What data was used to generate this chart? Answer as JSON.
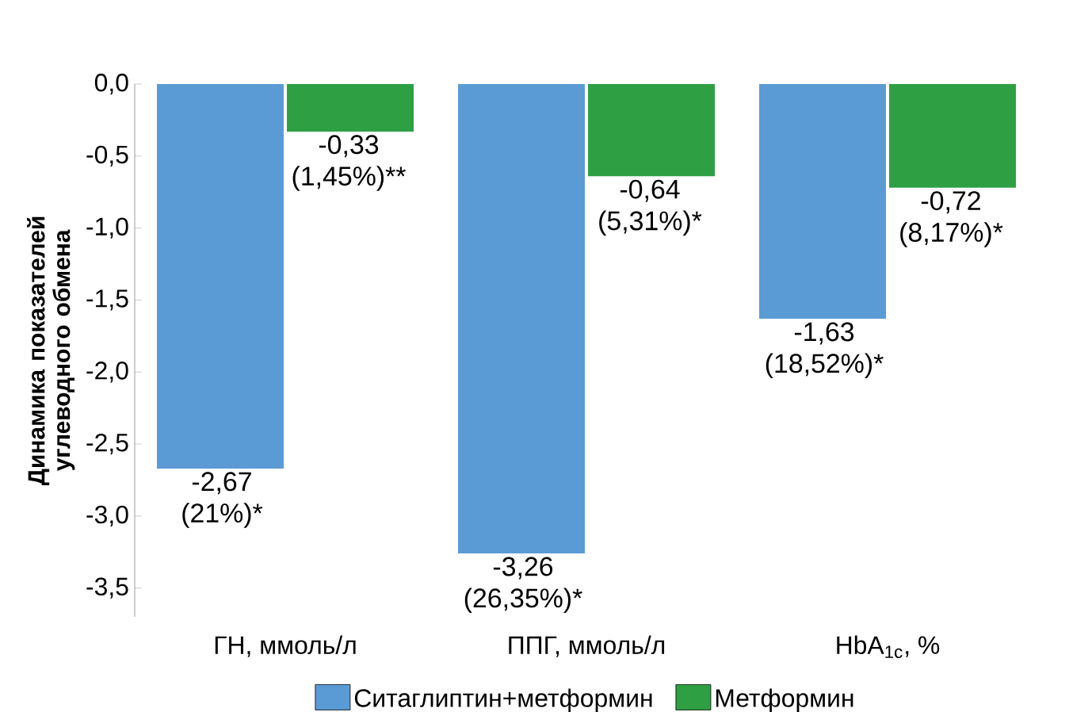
{
  "chart_data": {
    "type": "bar",
    "ylabel": "Динамика показателей углеводного обмена",
    "categories": [
      "ГН, ммоль/л",
      "ППГ, ммоль/л",
      "HbA$_{1c}$, %"
    ],
    "series": [
      {
        "name": "Ситаглиптин+метформин",
        "color": "#5b9bd5",
        "values": [
          -2.67,
          -3.26,
          -1.63
        ],
        "value_labels": [
          "-2,67 (21%)*",
          "-3,26 (26,35%)*",
          "-1,63 (18,52%)*"
        ]
      },
      {
        "name": "Метформин",
        "color": "#2ea043",
        "values": [
          -0.33,
          -0.64,
          -0.72
        ],
        "value_labels": [
          "-0,33 (1,45%)**",
          "-0,64 (5,31%)*",
          "-0,72 (8,17%)*"
        ]
      }
    ],
    "ylim": [
      -3.7,
      0
    ],
    "yticks": [
      {
        "value": 0,
        "label": "0,0"
      },
      {
        "value": -0.5,
        "label": "-0,5"
      },
      {
        "value": -1,
        "label": "-1,0"
      },
      {
        "value": -1.5,
        "label": "-1,5"
      },
      {
        "value": -2,
        "label": "-2,0"
      },
      {
        "value": -2.5,
        "label": "-2,5"
      },
      {
        "value": -3,
        "label": "-3,0"
      },
      {
        "value": -3.5,
        "label": "-3,5"
      }
    ],
    "grid": false,
    "legend": "bottom"
  }
}
